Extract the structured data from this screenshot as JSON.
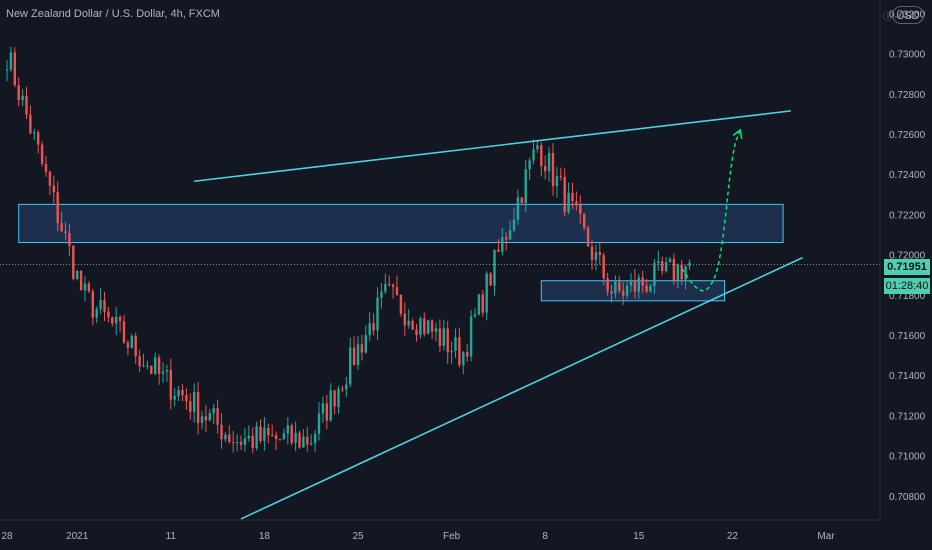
{
  "chart": {
    "title": "New Zealand Dollar / U.S. Dollar, 4h, FXCM",
    "currency_button": "USD",
    "current_price": "0.71951",
    "countdown": "01:28:40"
  },
  "chart_data": {
    "type": "candlestick",
    "symbol": "NZDUSD",
    "timeframe": "4h",
    "y_ticks": [
      0.708,
      0.71,
      0.712,
      0.714,
      0.716,
      0.718,
      0.72,
      0.722,
      0.724,
      0.726,
      0.728,
      0.73,
      0.732
    ],
    "y_tick_labels": [
      "0.70800",
      "0.71000",
      "0.71200",
      "0.71400",
      "0.71600",
      "0.71800",
      "0.72000",
      "0.72200",
      "0.72400",
      "0.72600",
      "0.72800",
      "0.73000",
      "0.73200"
    ],
    "x_ticks": [
      {
        "label": "28",
        "bar": 0
      },
      {
        "label": "2021",
        "bar": 18
      },
      {
        "label": "11",
        "bar": 42
      },
      {
        "label": "18",
        "bar": 66
      },
      {
        "label": "25",
        "bar": 90
      },
      {
        "label": "Feb",
        "bar": 114
      },
      {
        "label": "8",
        "bar": 138
      },
      {
        "label": "15",
        "bar": 162
      },
      {
        "label": "22",
        "bar": 186
      },
      {
        "label": "Mar",
        "bar": 210
      }
    ],
    "total_bars_in_view": 230,
    "key_prices": [
      0.73,
      0.718,
      0.714,
      0.7108,
      0.7108,
      0.718,
      0.715,
      0.7255,
      0.718,
      0.7195
    ],
    "current_price": 0.71951,
    "up_color": "#26a69a",
    "down_color": "#ef5350",
    "annotations": {
      "resistance_zone": {
        "bar_start": 3,
        "bar_end": 199,
        "price_top": 0.7225,
        "price_bottom": 0.7206
      },
      "support_zone": {
        "bar_start": 137,
        "bar_end": 184,
        "price_top": 0.7187,
        "price_bottom": 0.7177
      },
      "upper_trendline": {
        "bar_start": 48,
        "price_start": 0.72365,
        "bar_end": 201,
        "price_end": 0.72715
      },
      "lower_trendline": {
        "bar_start": 60,
        "price_start": 0.70685,
        "bar_end": 204,
        "price_end": 0.71985
      },
      "projection": {
        "points": [
          [
            173,
            0.7193
          ],
          [
            177,
            0.7182
          ],
          [
            180,
            0.7182
          ],
          [
            183,
            0.7196
          ],
          [
            186,
            0.7252
          ],
          [
            188,
            0.7262
          ]
        ]
      }
    },
    "grid": false,
    "legend": "none"
  }
}
